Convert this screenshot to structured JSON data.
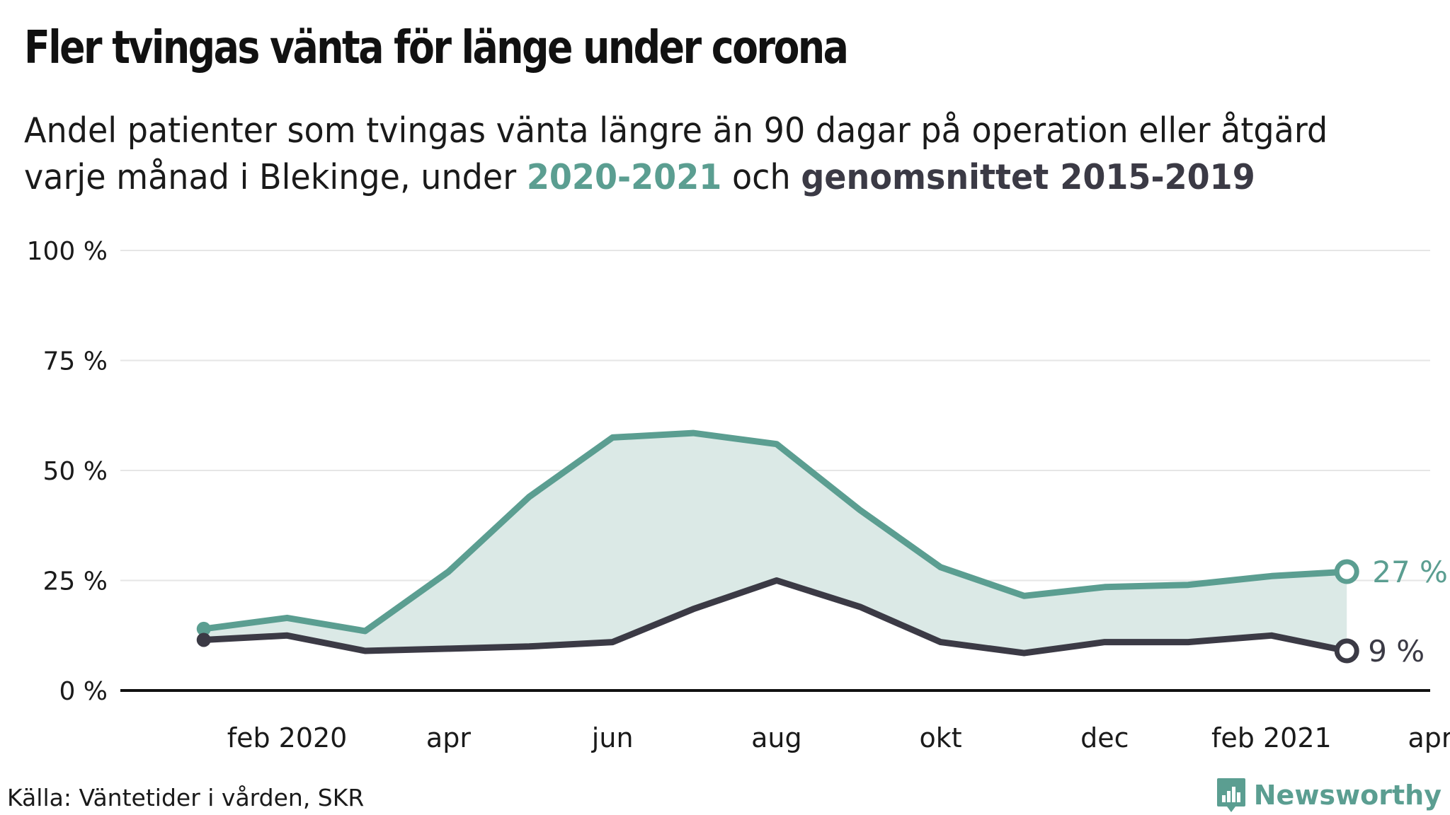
{
  "title": "Fler tvingas vänta för länge under corona",
  "subtitle": {
    "line1": "Andel patienter som tvingas vänta längre än 90 dagar på operation eller åtgärd",
    "line2_prefix": "varje månad i Blekinge, under ",
    "highlight_a": "2020-2021",
    "middle": " och ",
    "highlight_b": "genomsnittet 2015-2019"
  },
  "source": "Källa: Väntetider i vården, SKR",
  "brand": {
    "name": "Newsworthy",
    "icon": "newsworthy-logo-icon"
  },
  "colors": {
    "current": "#5b9e91",
    "average": "#3b3a45",
    "fill": "#dbe9e6",
    "grid": "#e6e6e6",
    "axis": "#111111"
  },
  "chart_data": {
    "type": "line",
    "title": "Fler tvingas vänta för länge under corona",
    "xlabel": "",
    "ylabel": "",
    "ylim": [
      0,
      100
    ],
    "y_ticks": [
      {
        "value": 0,
        "label": "0 %"
      },
      {
        "value": 25,
        "label": "25 %"
      },
      {
        "value": 50,
        "label": "50 %"
      },
      {
        "value": 75,
        "label": "75 %"
      },
      {
        "value": 100,
        "label": "100 %"
      }
    ],
    "x_ticks": [
      {
        "month": "2020-02",
        "label": "feb 2020"
      },
      {
        "month": "2020-04",
        "label": "apr"
      },
      {
        "month": "2020-06",
        "label": "jun"
      },
      {
        "month": "2020-08",
        "label": "aug"
      },
      {
        "month": "2020-10",
        "label": "okt"
      },
      {
        "month": "2020-12",
        "label": "dec"
      },
      {
        "month": "2021-02",
        "label": "feb 2021"
      },
      {
        "month": "2021-04",
        "label": "apr"
      }
    ],
    "x_range": [
      "2019-12-15",
      "2021-04-15"
    ],
    "x": [
      "2020-01",
      "2020-02",
      "2020-03",
      "2020-04",
      "2020-05",
      "2020-06",
      "2020-07",
      "2020-08",
      "2020-09",
      "2020-10",
      "2020-11",
      "2020-12",
      "2021-01",
      "2021-02",
      "2021-03"
    ],
    "series": [
      {
        "name": "2020-2021",
        "values": [
          14,
          16.5,
          13.5,
          27,
          44,
          57.5,
          58.5,
          56,
          41,
          28,
          21.5,
          23.5,
          24,
          26,
          27
        ],
        "end_label": "27 %"
      },
      {
        "name": "genomsnittet 2015-2019",
        "values": [
          11.5,
          12.5,
          9,
          9.5,
          10,
          11,
          18.5,
          25,
          19,
          11,
          8.5,
          11,
          11,
          12.5,
          9
        ],
        "end_label": "9 %"
      }
    ],
    "shaded_between_series": true,
    "grid": true
  }
}
